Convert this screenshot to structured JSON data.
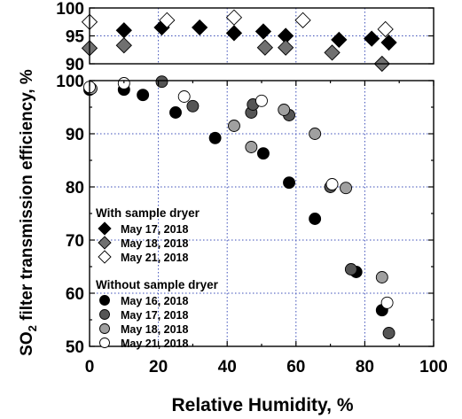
{
  "chart_data": [
    {
      "type": "scatter",
      "panel": "top",
      "xlim": [
        0,
        100
      ],
      "ylim": [
        90,
        100
      ],
      "yticks": [
        "90",
        "95",
        "100"
      ],
      "grid": true,
      "series": [
        {
          "name": "May 17, 2018",
          "marker": "diamond",
          "color": "#000000",
          "points": [
            [
              10,
              96
            ],
            [
              21,
              96.5
            ],
            [
              32,
              96.5
            ],
            [
              42,
              95.5
            ],
            [
              50.5,
              95.8
            ],
            [
              57,
              95
            ],
            [
              72.5,
              94.3
            ],
            [
              82,
              94.5
            ],
            [
              87,
              93.8
            ]
          ]
        },
        {
          "name": "May 18, 2018",
          "marker": "diamond",
          "color": "#707070",
          "points": [
            [
              0,
              92.8
            ],
            [
              10,
              93.3
            ],
            [
              51,
              92.9
            ],
            [
              57,
              92.9
            ],
            [
              70.5,
              92
            ],
            [
              85,
              90
            ]
          ]
        },
        {
          "name": "May 21, 2018",
          "marker": "diamond",
          "color": "#ffffff",
          "points": [
            [
              0,
              97.5
            ],
            [
              22.5,
              97.8
            ],
            [
              42,
              98.3
            ],
            [
              62,
              97.8
            ],
            [
              86,
              96.2
            ]
          ]
        }
      ]
    },
    {
      "type": "scatter",
      "panel": "main",
      "xlabel": "Relative Humidity, %",
      "ylabel": "SO2 filter transmission efficiency, %",
      "xlim": [
        0,
        100
      ],
      "ylim": [
        50,
        100
      ],
      "xticks": [
        "0",
        "20",
        "40",
        "60",
        "80",
        "100"
      ],
      "yticks": [
        "50",
        "60",
        "70",
        "80",
        "90",
        "100"
      ],
      "grid": true,
      "legend_position": "bottom-left",
      "legend_groups": [
        {
          "title": "With sample dryer",
          "entries": [
            "May 17, 2018",
            "May 18, 2018",
            "May 21, 2018"
          ]
        },
        {
          "title": "Without sample dryer",
          "entries": [
            "May 16, 2018",
            "May 17, 2018",
            "May 18, 2018",
            "May 21, 2018"
          ]
        }
      ],
      "series": [
        {
          "name": "May 16, 2018",
          "marker": "circle",
          "color": "#000000",
          "points": [
            [
              0,
              98.3
            ],
            [
              10,
              98.3
            ],
            [
              15.5,
              97.3
            ],
            [
              25,
              94
            ],
            [
              36.5,
              89.2
            ],
            [
              50.5,
              86.3
            ],
            [
              58,
              80.8
            ],
            [
              65.5,
              74
            ],
            [
              77.5,
              64
            ],
            [
              85,
              56.8
            ]
          ]
        },
        {
          "name": "May 17, 2018",
          "marker": "circle",
          "color": "#555555",
          "points": [
            [
              21,
              99.8
            ],
            [
              30,
              95.2
            ],
            [
              47,
              94
            ],
            [
              47.5,
              95.5
            ],
            [
              58,
              93.5
            ],
            [
              70,
              80
            ],
            [
              76,
              64.5
            ],
            [
              87,
              52.5
            ]
          ]
        },
        {
          "name": "May 18, 2018",
          "marker": "circle",
          "color": "#a0a0a0",
          "points": [
            [
              0.5,
              98.5
            ],
            [
              42,
              91.5
            ],
            [
              47,
              87.5
            ],
            [
              56.5,
              94.5
            ],
            [
              65.5,
              90
            ],
            [
              74.5,
              79.8
            ],
            [
              85,
              63
            ]
          ]
        },
        {
          "name": "May 21, 2018",
          "marker": "circle",
          "color": "#ffffff",
          "points": [
            [
              0,
              98.8
            ],
            [
              10,
              99.5
            ],
            [
              27.5,
              97
            ],
            [
              50,
              96.2
            ],
            [
              70.5,
              80.5
            ],
            [
              86.5,
              58.2
            ]
          ]
        }
      ]
    }
  ]
}
